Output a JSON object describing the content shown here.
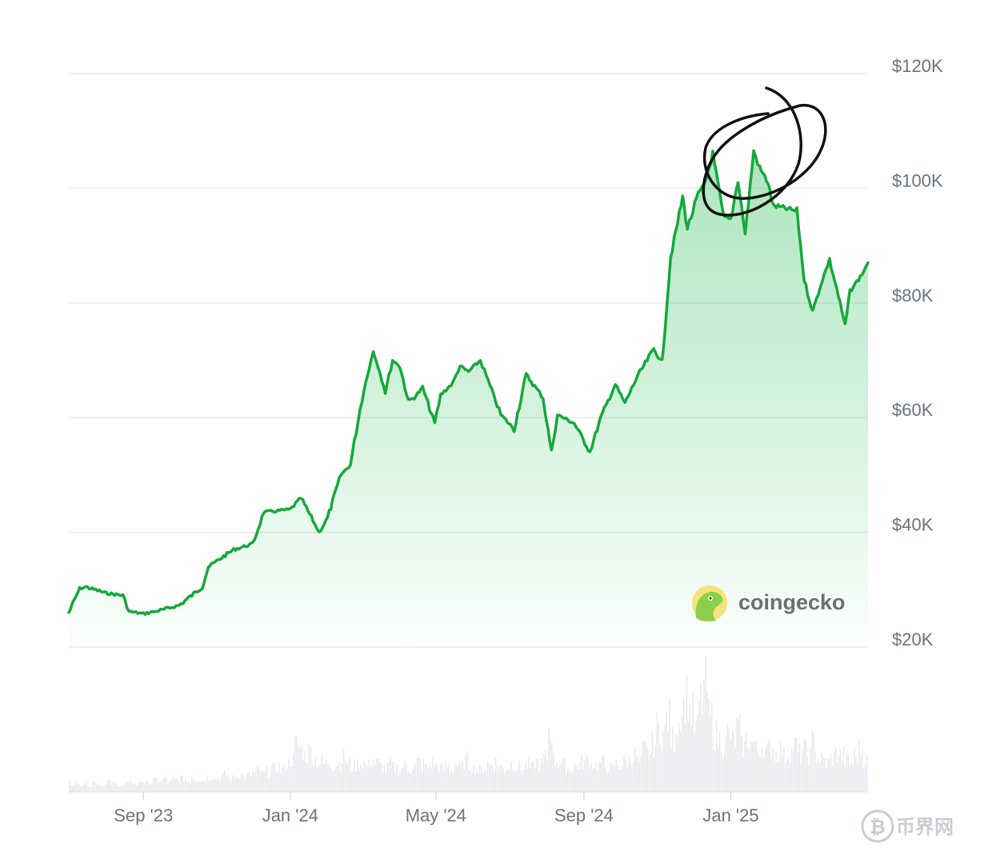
{
  "chart_data": {
    "type": "area",
    "series": [
      {
        "x": [
          "2023-07-01",
          "2023-07-10",
          "2023-07-15",
          "2023-08-01",
          "2023-08-15",
          "2023-08-20",
          "2023-09-01",
          "2023-09-15",
          "2023-10-01",
          "2023-10-20",
          "2023-10-25",
          "2023-11-01",
          "2023-11-15",
          "2023-12-01",
          "2023-12-10",
          "2024-01-01",
          "2024-01-10",
          "2024-01-20",
          "2024-01-25",
          "2024-02-01",
          "2024-02-12",
          "2024-02-20",
          "2024-02-28",
          "2024-03-05",
          "2024-03-10",
          "2024-03-14",
          "2024-03-20",
          "2024-03-26",
          "2024-04-01",
          "2024-04-08",
          "2024-04-13",
          "2024-04-20",
          "2024-04-30",
          "2024-05-05",
          "2024-05-15",
          "2024-05-21",
          "2024-05-28",
          "2024-06-07",
          "2024-06-15",
          "2024-06-24",
          "2024-07-05",
          "2024-07-15",
          "2024-07-29",
          "2024-08-05",
          "2024-08-10",
          "2024-08-24",
          "2024-09-06",
          "2024-09-15",
          "2024-09-27",
          "2024-10-05",
          "2024-10-15",
          "2024-10-29",
          "2024-11-05",
          "2024-11-12",
          "2024-11-15",
          "2024-11-22",
          "2024-11-26",
          "2024-12-05",
          "2024-12-10",
          "2024-12-17",
          "2024-12-26",
          "2025-01-01",
          "2025-01-07",
          "2025-01-13",
          "2025-01-20",
          "2025-01-25",
          "2025-02-01",
          "2025-02-05",
          "2025-02-15",
          "2025-02-25",
          "2025-03-03",
          "2025-03-10",
          "2025-03-18",
          "2025-03-24",
          "2025-03-30",
          "2025-04-06",
          "2025-04-10",
          "2025-04-20",
          "2025-04-25"
        ],
        "values": [
          26000,
          30200,
          30500,
          29400,
          29000,
          26200,
          25800,
          26400,
          27300,
          30500,
          34000,
          35000,
          37000,
          38000,
          43500,
          44000,
          46000,
          42000,
          40000,
          42500,
          50000,
          51800,
          61500,
          67500,
          71500,
          69000,
          64500,
          70000,
          69000,
          63000,
          63500,
          65200,
          59000,
          64000,
          66000,
          69000,
          68000,
          70000,
          65500,
          60500,
          58000,
          67500,
          63500,
          54000,
          60500,
          59000,
          54000,
          60000,
          65800,
          62500,
          67000,
          72000,
          69500,
          88000,
          91000,
          98500,
          93000,
          99000,
          100500,
          106000,
          95000,
          94500,
          101500,
          92000,
          106500,
          103500,
          101000,
          97000,
          96500,
          96000,
          84000,
          78500,
          84000,
          87500,
          82500,
          76000,
          82000,
          85000,
          87000
        ]
      }
    ],
    "x_ticks": [
      "Sep '23",
      "Jan '24",
      "May '24",
      "Sep '24",
      "Jan '25"
    ],
    "y_ticks": [
      "$20K",
      "$40K",
      "$60K",
      "$80K",
      "$100K",
      "$120K"
    ],
    "ylim": [
      20000,
      122000
    ],
    "grid": true,
    "legend": "none",
    "colors": {
      "line": "#16a83b",
      "fill": "#2fbf5a",
      "volume": "#e6e8ec",
      "grid": "#e9ebee"
    },
    "volume": [
      8,
      9,
      7,
      8,
      6,
      9,
      8,
      7,
      10,
      8,
      7,
      6,
      8,
      9,
      7,
      10,
      8,
      9,
      11,
      10,
      12,
      9,
      11,
      13,
      12,
      10,
      14,
      12,
      11,
      13,
      15,
      12,
      14,
      16,
      13,
      15,
      17,
      14,
      16,
      18,
      20,
      17,
      19,
      22,
      24,
      21,
      26,
      30,
      45,
      40,
      35,
      38,
      30,
      28,
      26,
      30,
      25,
      28,
      32,
      27,
      24,
      26,
      28,
      25,
      30,
      27,
      24,
      22,
      26,
      23,
      21,
      25,
      22,
      24,
      28,
      26,
      23,
      27,
      25,
      22,
      24,
      21,
      26,
      23,
      30,
      25,
      22,
      20,
      24,
      26,
      28,
      25,
      22,
      24,
      27,
      23,
      21,
      25,
      23,
      28,
      26,
      32,
      60,
      30,
      28,
      25,
      22,
      24,
      26,
      28,
      30,
      27,
      25,
      28,
      24,
      22,
      26,
      25,
      28,
      30,
      34,
      28,
      40,
      35,
      45,
      60,
      55,
      70,
      50,
      65,
      80,
      90,
      75,
      60,
      85,
      100,
      70,
      55,
      50,
      45,
      55,
      48,
      60,
      42,
      50,
      46,
      40,
      44,
      38,
      42,
      36,
      40,
      34,
      38,
      44,
      36,
      40,
      34,
      48,
      32,
      30,
      28,
      32,
      36,
      34,
      30,
      28,
      35,
      40,
      30
    ]
  },
  "brand": {
    "name": "coingecko",
    "icon": "gecko-logo-icon"
  },
  "watermark": {
    "text": "币界网",
    "icon": "bitcoin-icon"
  },
  "annotation": {
    "icon": "hand-drawn-circle-icon"
  }
}
